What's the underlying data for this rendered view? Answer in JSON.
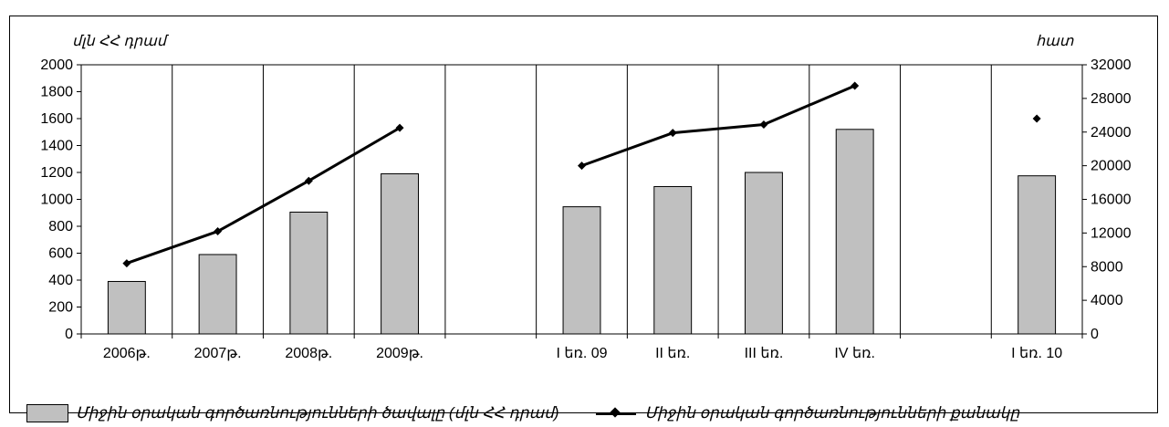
{
  "chart_data": {
    "type": "bar",
    "categories": [
      "2006թ.",
      "2007թ.",
      "2008թ.",
      "2009թ.",
      "",
      "I եռ. 09",
      "II եռ.",
      "III եռ.",
      "IV եռ.",
      "",
      "I եռ. 10"
    ],
    "series": [
      {
        "name": "Միջին օրական գործառնությունների ծավալը (մլն ՀՀ դրամ)",
        "type": "bar",
        "axis": "left",
        "values": [
          390,
          590,
          905,
          1190,
          null,
          945,
          1095,
          1200,
          1520,
          null,
          1175
        ]
      },
      {
        "name": "Միջին օրական գործառնությունների քանակը",
        "type": "line",
        "axis": "right",
        "values": [
          8400,
          12200,
          18200,
          24500,
          null,
          20000,
          23900,
          24900,
          29500,
          null,
          25600
        ],
        "line_breaks_after": [
          3,
          8
        ],
        "marker": "diamond"
      }
    ],
    "y_left": {
      "label": "մլն ՀՀ դրամ",
      "ylim": [
        0,
        2000
      ],
      "ticks": [
        0,
        200,
        400,
        600,
        800,
        1000,
        1200,
        1400,
        1600,
        1800,
        2000
      ]
    },
    "y_right": {
      "label": "հատ",
      "ylim": [
        0,
        32000
      ],
      "ticks": [
        0,
        4000,
        8000,
        12000,
        16000,
        20000,
        24000,
        28000,
        32000
      ]
    },
    "grid": "vertical",
    "legend": "bottom",
    "colors": {
      "bar_fill": "#c0c0c0",
      "bar_stroke": "#000000",
      "line": "#000000"
    }
  }
}
